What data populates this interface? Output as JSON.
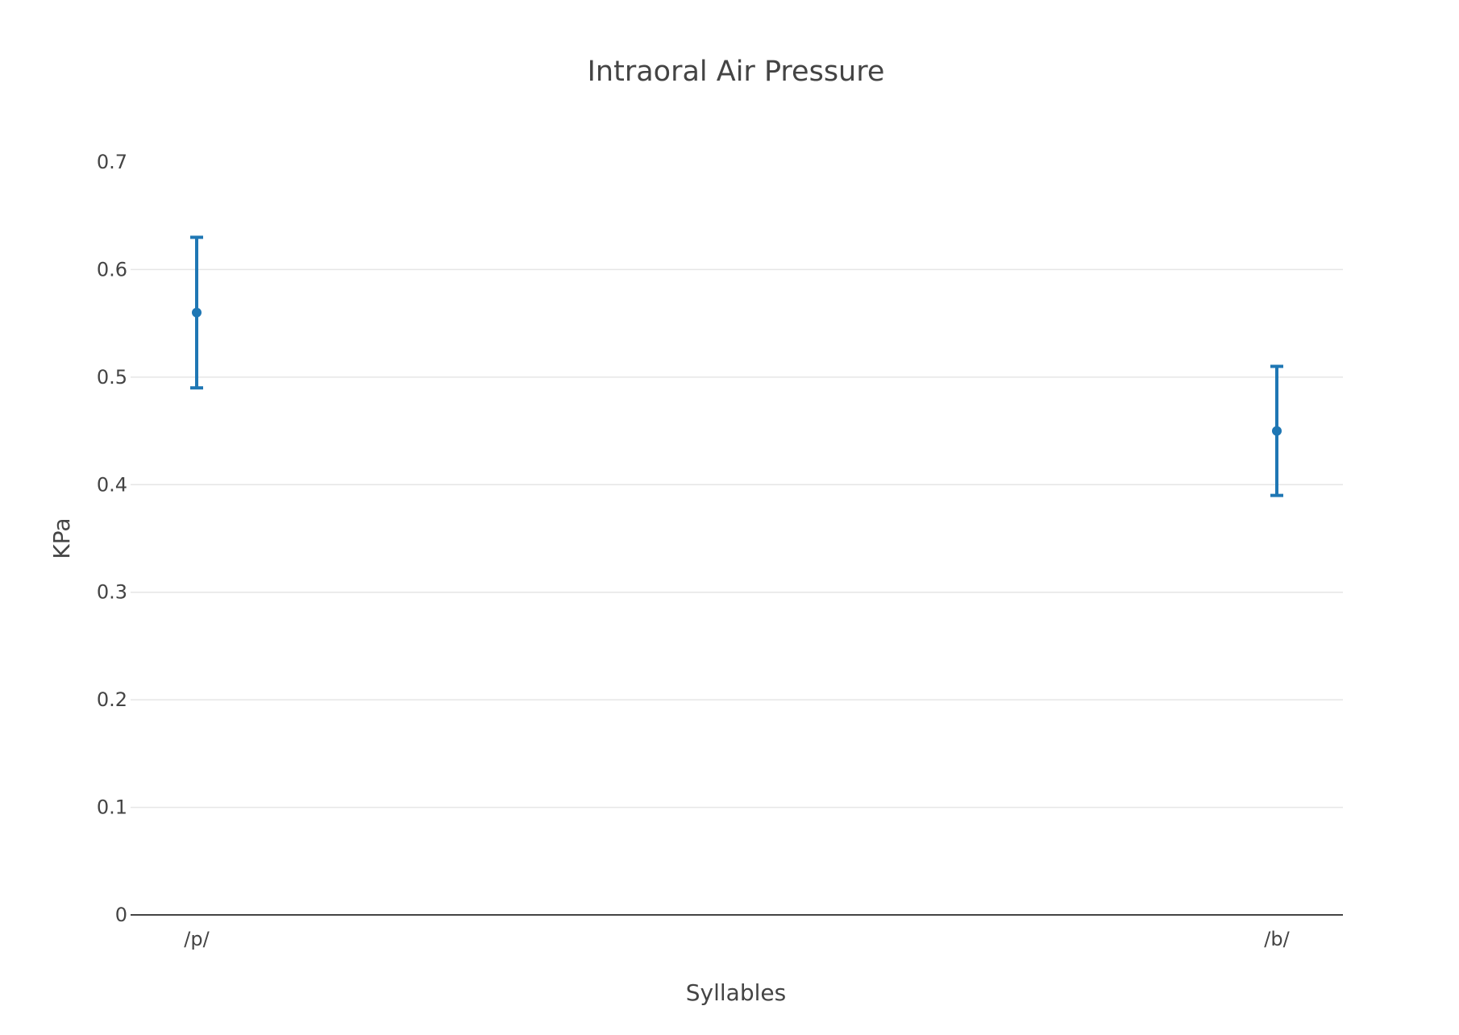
{
  "chart_data": {
    "type": "scatter",
    "title": "Intraoral Air Pressure",
    "xlabel": "Syllables",
    "ylabel": "KPa",
    "categories": [
      "/p/",
      "/b/"
    ],
    "series": [
      {
        "values": [
          0.56,
          0.45
        ],
        "error_plus": [
          0.07,
          0.06
        ],
        "error_minus": [
          0.07,
          0.06
        ]
      }
    ],
    "ylim": [
      0,
      0.7
    ],
    "yticks": [
      0,
      0.1,
      0.2,
      0.3,
      0.4,
      0.5,
      0.6,
      0.7
    ],
    "ytick_labels": [
      "0",
      "0.1",
      "0.2",
      "0.3",
      "0.4",
      "0.5",
      "0.6",
      "0.7"
    ],
    "grid": true,
    "legend": "none",
    "colors": {
      "marker": "#1f77b4",
      "grid": "#e6e6e6",
      "axis": "#444444",
      "text": "#444444"
    }
  }
}
